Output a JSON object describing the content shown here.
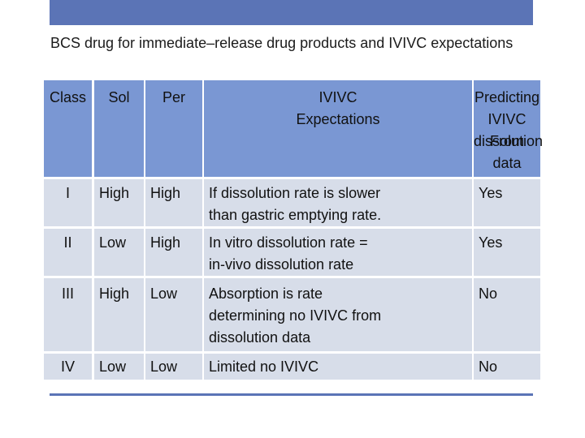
{
  "title": "BCS  drug   for immediate–release drug  products  and  IVIVC expectations",
  "columns": {
    "class": "Class",
    "sol": "Sol",
    "per": "Per",
    "ivivc_line1": "IVIVC",
    "ivivc_line2": "Expectations",
    "pred_line1": "Predicting",
    "pred_line2": "IVIVC From",
    "pred_line3": "dissolution",
    "pred_line4": "data"
  },
  "rows": [
    {
      "class": "I",
      "sol": "High",
      "per": "High",
      "exp": [
        "If dissolution rate is slower",
        "than gastric emptying rate."
      ],
      "pred": "Yes"
    },
    {
      "class": "II",
      "sol": "Low",
      "per": "High",
      "exp": [
        "In vitro dissolution rate =",
        "in-vivo  dissolution rate"
      ],
      "pred": "Yes"
    },
    {
      "class": "III",
      "sol": "High",
      "per": "Low",
      "exp": [
        "Absorption is rate",
        "determining no IVIVC from",
        "dissolution data"
      ],
      "pred": "No"
    },
    {
      "class": "IV",
      "sol": "Low",
      "per": "Low",
      "exp": [
        "Limited no IVIVC"
      ],
      "pred": "No"
    }
  ],
  "colors": {
    "header_fill": "#7a97d3",
    "row_fill": "#d7dde9",
    "accent_bar": "#5b74b6"
  }
}
